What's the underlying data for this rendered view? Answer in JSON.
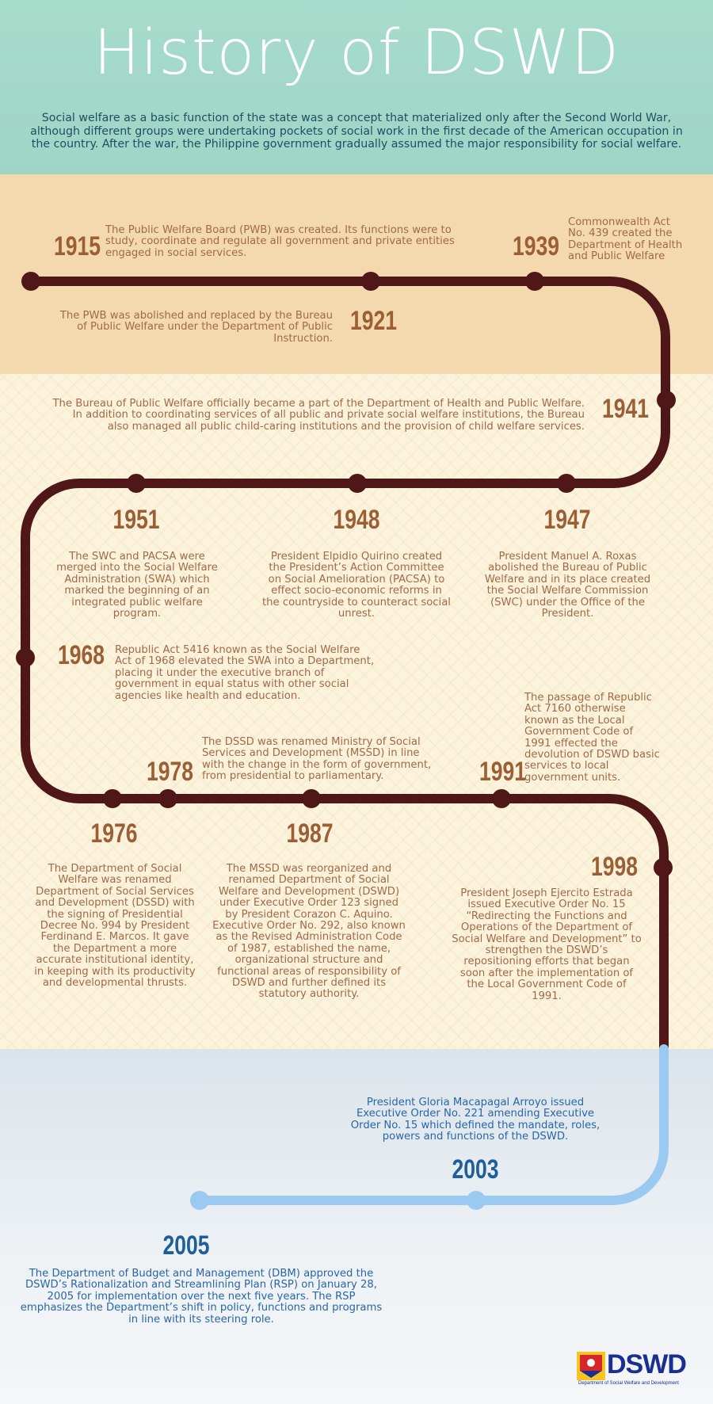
{
  "header": {
    "title": "History of DSWD",
    "intro": "Social welfare as a basic function of the state was a concept that materialized only after the Second World War, although different groups were undertaking pockets of social work in the first decade of the American occupation in the country. After the war, the Philippine government gradually assumed the major responsibility for social welfare."
  },
  "events": {
    "e1915": {
      "year": "1915",
      "text": "The Public Welfare Board (PWB) was created. Its functions were to study, coordinate and regulate all government and private entities engaged in social services."
    },
    "e1921": {
      "year": "1921",
      "text": "The PWB was abolished and replaced by the Bureau of Public Welfare under the Department of Public Instruction."
    },
    "e1939": {
      "year": "1939",
      "text": "Commonwealth Act No. 439 created the Department of Health and Public Welfare"
    },
    "e1941": {
      "year": "1941",
      "text": "The Bureau of Public Welfare officially became a part of the Department of Health and Public Welfare. In addition to coordinating services of all public and private social welfare institutions, the Bureau also managed all public child-caring institutions and the provision of child welfare services."
    },
    "e1951": {
      "year": "1951",
      "text": "The SWC and PACSA were merged into the Social Welfare Administration (SWA) which marked the beginning of an integrated public welfare program."
    },
    "e1948": {
      "year": "1948",
      "text": "President Elpidio Quirino created the President’s Action Committee on Social Amelioration (PACSA) to effect socio-economic reforms in the countryside to counteract social unrest."
    },
    "e1947": {
      "year": "1947",
      "text": "President Manuel A. Roxas abolished the Bureau of Public Welfare and in its place created the Social Welfare Commission (SWC) under the Office of the President."
    },
    "e1968": {
      "year": "1968",
      "text": "Republic Act 5416 known as the Social Welfare Act of 1968 elevated the SWA into a Department, placing it under the executive branch of government in equal status with other social agencies like health and education."
    },
    "e1978": {
      "year": "1978",
      "text": "The DSSD was renamed Ministry of Social Services and Development (MSSD) in line with the change in the form of government, from presidential to parliamentary."
    },
    "e1991": {
      "year": "1991",
      "text": "The passage of Republic Act 7160 otherwise known as the Local Government Code of 1991 effected the devolution of DSWD basic services to local government units."
    },
    "e1976": {
      "year": "1976",
      "text": "The Department of Social Welfare was renamed Department of Social Services and Development (DSSD) with the signing of Presidential Decree No. 994 by President Ferdinand E. Marcos. It gave the Department a more accurate institutional identity, in keeping with its productivity and developmental thrusts."
    },
    "e1987": {
      "year": "1987",
      "text": "The MSSD was reorganized and renamed Department of Social Welfare and Development (DSWD) under Executive Order 123 signed by President Corazon C. Aquino. Executive Order No. 292, also known as the Revised Administration Code of 1987, established the name, organizational structure and functional areas of responsibility of DSWD and further defined its statutory authority."
    },
    "e1998": {
      "year": "1998",
      "text": "President Joseph Ejercito Estrada issued Executive Order No. 15 “Redirecting the Functions and Operations of the Department of Social Welfare and Development” to strengthen the DSWD’s repositioning efforts that began soon after the implementation of the Local Government Code of 1991."
    },
    "e2003": {
      "year": "2003",
      "text": "President Gloria Macapagal Arroyo issued Executive Order No. 221 amending Executive Order No. 15 which defined the mandate, roles, powers and functions of the DSWD."
    },
    "e2005": {
      "year": "2005",
      "text": "The Department of Budget and Management (DBM) approved the DSWD’s Rationalization and Streamlining Plan (RSP) on January 28, 2005 for implementation over the next five years. The RSP emphasizes the Department’s shift in policy, functions and programs in line with its steering role."
    }
  },
  "logo": {
    "name": "DSWD",
    "subtitle": "Department of Social Welfare and Development"
  },
  "colors": {
    "timeline_brown": "#4f1717",
    "timeline_blue": "#9ac9f2",
    "year_brown": "#9b5e35",
    "year_blue": "#1f5f99"
  }
}
